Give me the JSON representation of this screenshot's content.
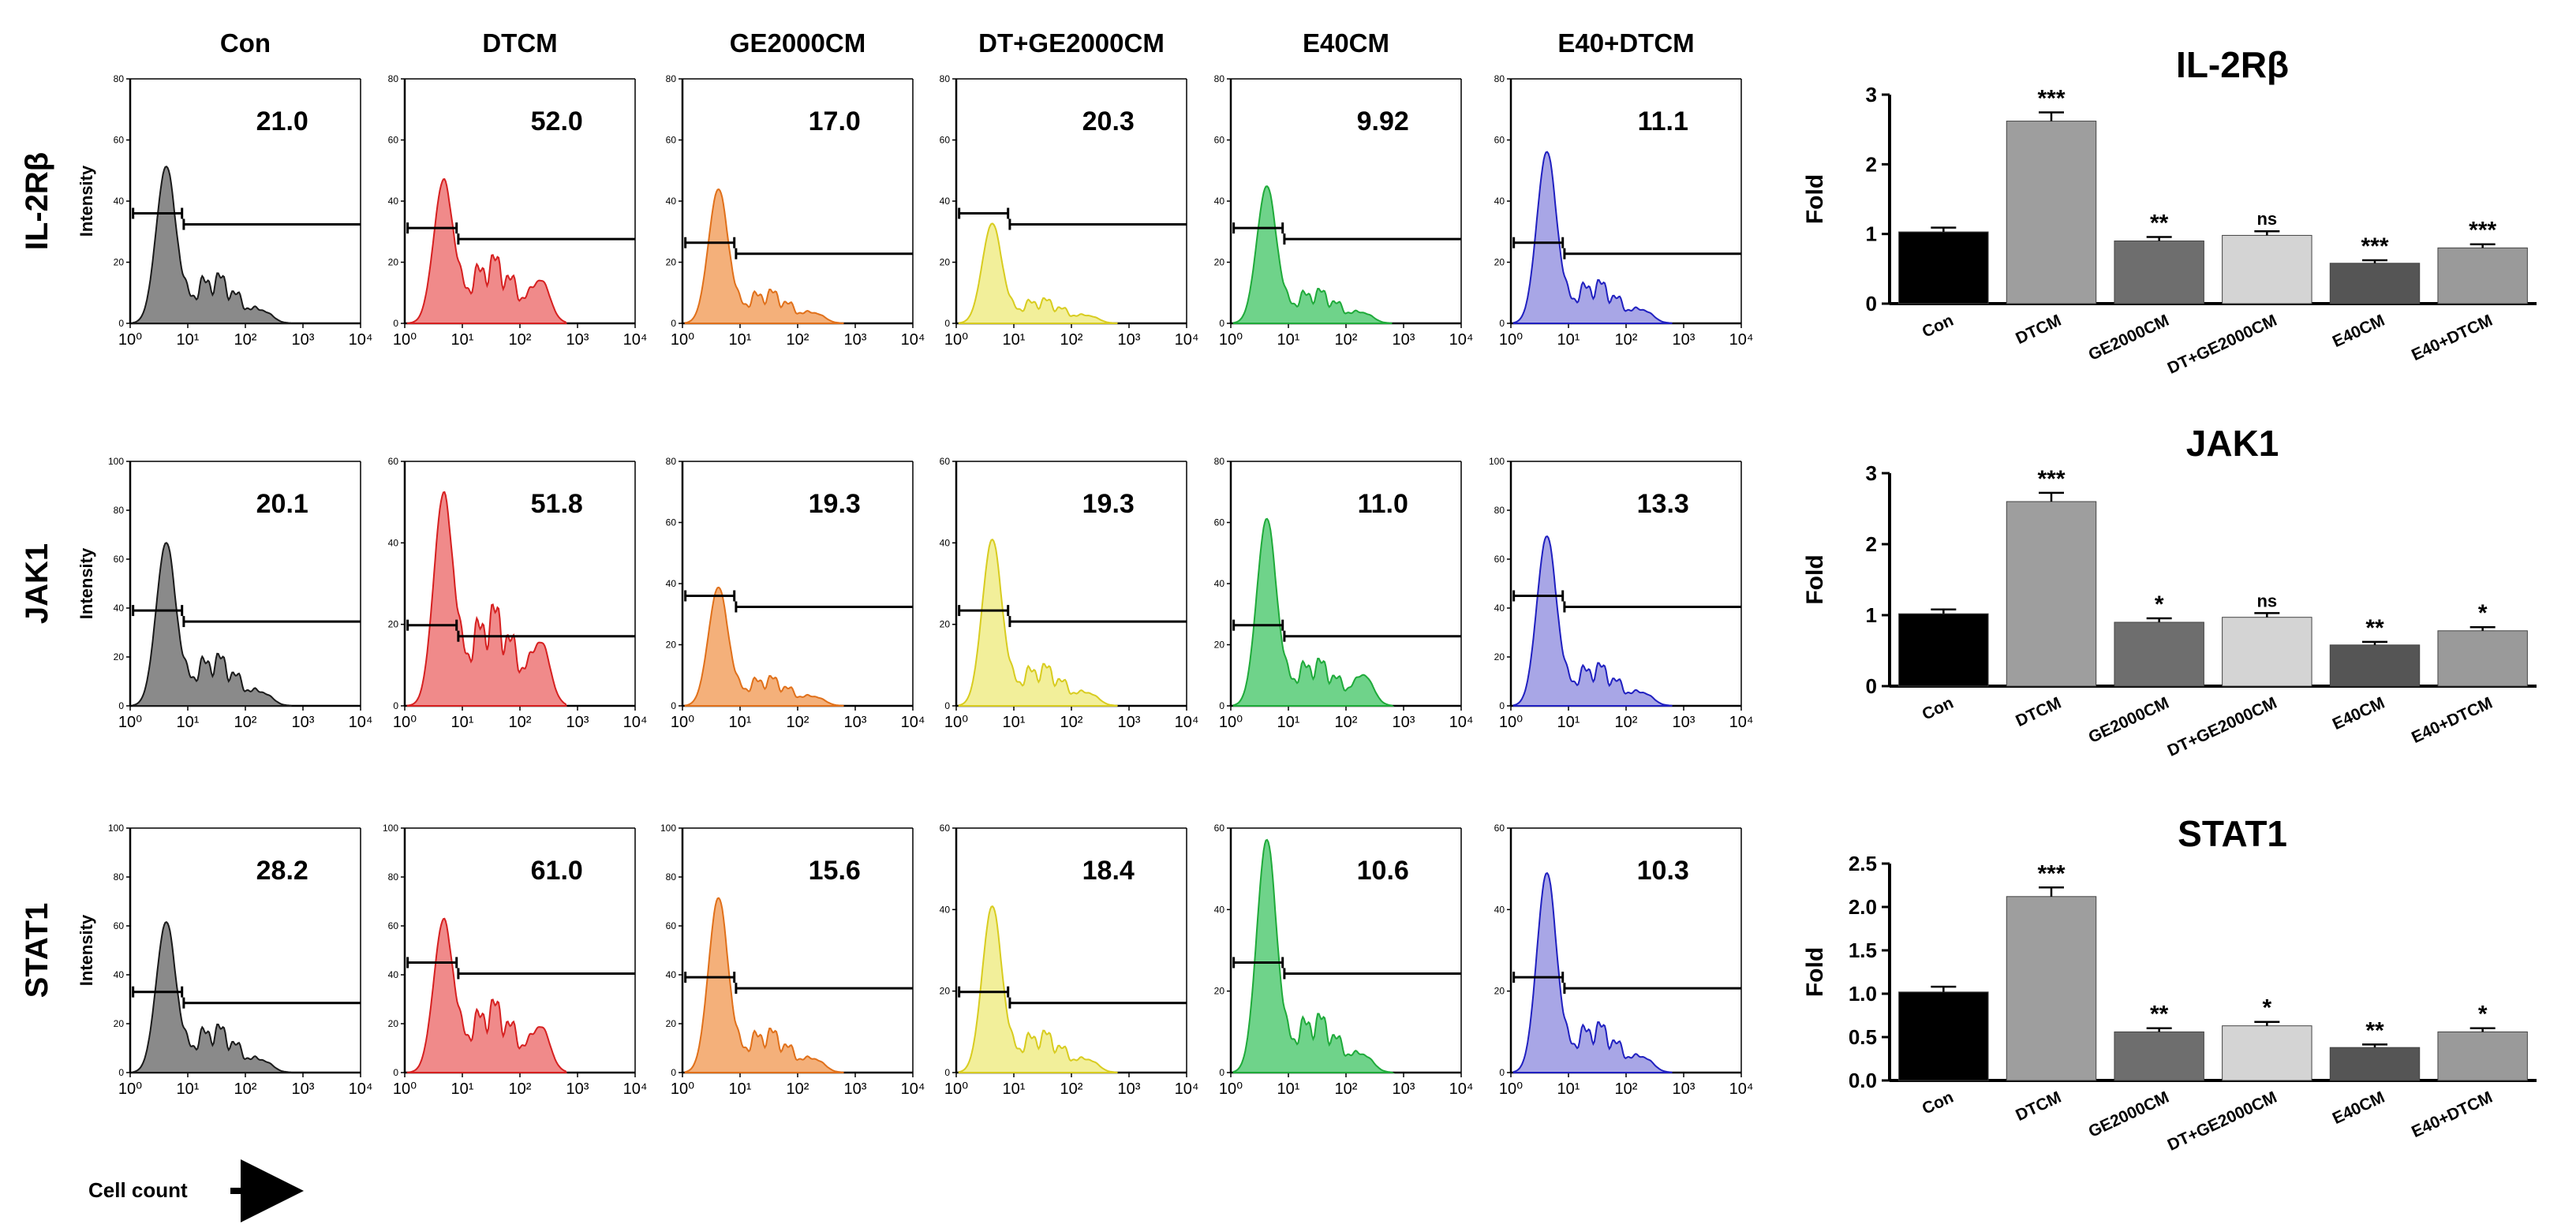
{
  "figure": {
    "columns": [
      "Con",
      "DTCM",
      "GE2000CM",
      "DT+GE2000CM",
      "E40CM",
      "E40+DTCM"
    ],
    "rows": [
      "IL-2Rβ",
      "JAK1",
      "STAT1"
    ],
    "colors": {
      "Con": "#8a8a8a",
      "DTCM": "#f08a8a",
      "GE2000CM": "#f4b07a",
      "DT+GE2000CM": "#f2ef9a",
      "E40CM": "#6fd38a",
      "E40+DTCM": "#a8a6e6"
    },
    "line_colors": {
      "Con": "#1a1a1a",
      "DTCM": "#d62020",
      "GE2000CM": "#e0701a",
      "DT+GE2000CM": "#d8cc20",
      "E40CM": "#1faa3a",
      "E40+DTCM": "#2020c0"
    },
    "y_axis_label": "Intensity",
    "x_axis_label": "Cell count",
    "x_tick_labels": [
      "10⁰",
      "10¹",
      "10²",
      "10³",
      "10⁴"
    ],
    "ylim": [
      [
        80,
        80,
        80,
        80,
        80,
        80
      ],
      [
        100,
        60,
        80,
        60,
        80,
        100
      ],
      [
        100,
        100,
        100,
        60,
        60,
        60
      ]
    ],
    "y_tick_labels": [
      [
        [
          "0",
          "20",
          "40",
          "60",
          "80"
        ],
        [
          "0",
          "20",
          "40",
          "60",
          "80"
        ],
        [
          "0",
          "20",
          "40",
          "60",
          "80"
        ],
        [
          "0",
          "20",
          "40",
          "60",
          "80"
        ],
        [
          "0",
          "20",
          "40",
          "60",
          "80"
        ],
        [
          "0",
          "20",
          "40",
          "60",
          "80"
        ]
      ],
      [
        [
          "0",
          "20",
          "40",
          "60",
          "80",
          "100"
        ],
        [
          "0",
          "20",
          "40",
          "60"
        ],
        [
          "0",
          "20",
          "40",
          "60",
          "80"
        ],
        [
          "0",
          "20",
          "40",
          "60"
        ],
        [
          "0",
          "20",
          "40",
          "60",
          "80"
        ],
        [
          "0",
          "20",
          "40",
          "60",
          "80",
          "100"
        ]
      ],
      [
        [
          "0",
          "20",
          "40",
          "60",
          "80",
          "100"
        ],
        [
          "0",
          "20",
          "40",
          "60",
          "80",
          "100"
        ],
        [
          "0",
          "20",
          "40",
          "60",
          "80",
          "100"
        ],
        [
          "0",
          "20",
          "40",
          "60"
        ],
        [
          "0",
          "20",
          "40",
          "60"
        ],
        [
          "0",
          "20",
          "40",
          "60"
        ]
      ]
    ],
    "values": [
      [
        "21.0",
        "52.0",
        "17.0",
        "20.3",
        "9.92",
        "11.1"
      ],
      [
        "20.1",
        "51.8",
        "19.3",
        "19.3",
        "11.0",
        "13.3"
      ],
      [
        "28.2",
        "61.0",
        "15.6",
        "18.4",
        "10.6",
        "10.3"
      ]
    ],
    "peaks": [
      [
        50,
        45,
        43,
        32,
        44,
        55
      ],
      [
        65,
        50,
        38,
        40,
        60,
        68
      ],
      [
        60,
        60,
        70,
        40,
        56,
        48
      ]
    ]
  },
  "chart_data": [
    {
      "type": "bar",
      "title": "IL-2Rβ",
      "ylabel": "Fold",
      "ylim": [
        0,
        3
      ],
      "yticks": [
        "0",
        "1",
        "2",
        "3"
      ],
      "categories": [
        "Con",
        "DTCM",
        "GE2000CM",
        "DT+GE2000CM",
        "E40CM",
        "E40+DTCM"
      ],
      "values": [
        1.03,
        2.62,
        0.9,
        0.98,
        0.58,
        0.8
      ],
      "significance": [
        "",
        "***",
        "**",
        "ns",
        "***",
        "***"
      ],
      "colors": [
        "#000000",
        "#9e9e9e",
        "#6e6e6e",
        "#d4d4d4",
        "#555555",
        "#9a9a9a"
      ]
    },
    {
      "type": "bar",
      "title": "JAK1",
      "ylabel": "Fold",
      "ylim": [
        0,
        3
      ],
      "yticks": [
        "0",
        "1",
        "2",
        "3"
      ],
      "categories": [
        "Con",
        "DTCM",
        "GE2000CM",
        "DT+GE2000CM",
        "E40CM",
        "E40+DTCM"
      ],
      "values": [
        1.02,
        2.6,
        0.9,
        0.97,
        0.58,
        0.78
      ],
      "significance": [
        "",
        "***",
        "*",
        "ns",
        "**",
        "*"
      ],
      "colors": [
        "#000000",
        "#9e9e9e",
        "#6e6e6e",
        "#d4d4d4",
        "#555555",
        "#9a9a9a"
      ]
    },
    {
      "type": "bar",
      "title": "STAT1",
      "ylabel": "Fold",
      "ylim": [
        0,
        2.5
      ],
      "yticks": [
        "0.0",
        "0.5",
        "1.0",
        "1.5",
        "2.0",
        "2.5"
      ],
      "categories": [
        "Con",
        "DTCM",
        "GE2000CM",
        "DT+GE2000CM",
        "E40CM",
        "E40+DTCM"
      ],
      "values": [
        1.02,
        2.12,
        0.56,
        0.63,
        0.38,
        0.56
      ],
      "significance": [
        "",
        "***",
        "**",
        "*",
        "**",
        "*"
      ],
      "colors": [
        "#000000",
        "#9e9e9e",
        "#6e6e6e",
        "#d4d4d4",
        "#555555",
        "#9a9a9a"
      ]
    }
  ]
}
